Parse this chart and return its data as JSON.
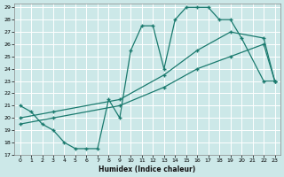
{
  "xlabel": "Humidex (Indice chaleur)",
  "bg_color": "#cce8e8",
  "grid_color": "#ffffff",
  "line_color": "#1a7a6e",
  "xlim": [
    -0.5,
    23.5
  ],
  "ylim": [
    17,
    29.3
  ],
  "yticks": [
    17,
    18,
    19,
    20,
    21,
    22,
    23,
    24,
    25,
    26,
    27,
    28,
    29
  ],
  "xticks": [
    0,
    1,
    2,
    3,
    4,
    5,
    6,
    7,
    8,
    9,
    10,
    11,
    12,
    13,
    14,
    15,
    16,
    17,
    18,
    19,
    20,
    21,
    22,
    23
  ],
  "line1_x": [
    0,
    1,
    2,
    3,
    4,
    5,
    6,
    7,
    8,
    9,
    10,
    11,
    12,
    13,
    14,
    15,
    16,
    17,
    18,
    19,
    20,
    22,
    23
  ],
  "line1_y": [
    21,
    20.5,
    19.5,
    19,
    18,
    17.5,
    17.5,
    17.5,
    21.5,
    20,
    25.5,
    27.5,
    27.5,
    24,
    28,
    29,
    29,
    29,
    28,
    28,
    26.5,
    23,
    23
  ],
  "line2_x": [
    0,
    3,
    9,
    13,
    16,
    19,
    22,
    23
  ],
  "line2_y": [
    20,
    20.5,
    21.5,
    23.5,
    25.5,
    27,
    26.5,
    23
  ],
  "line3_x": [
    0,
    3,
    9,
    13,
    16,
    19,
    22,
    23
  ],
  "line3_y": [
    19.5,
    20,
    21,
    22.5,
    24,
    25,
    26,
    23
  ]
}
